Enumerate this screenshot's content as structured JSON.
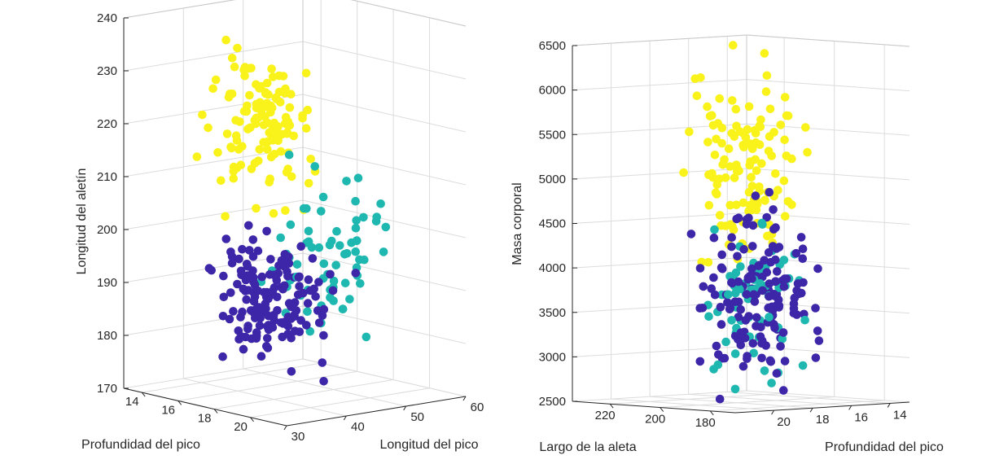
{
  "chart_data": [
    {
      "type": "scatter",
      "title": "",
      "xlabel": "Profundidad del pico",
      "ylabel": "Longitud del pico",
      "zlabel": "Longitud del aletín",
      "x_ticks": [
        "20",
        "18",
        "16",
        "14"
      ],
      "y_ticks": [
        "30",
        "40",
        "50",
        "60"
      ],
      "z_ticks": [
        "170",
        "180",
        "190",
        "200",
        "210",
        "220",
        "230",
        "240"
      ],
      "xlim": [
        13,
        22
      ],
      "ylim": [
        30,
        60
      ],
      "zlim": [
        170,
        240
      ],
      "grid": true,
      "clusters": [
        {
          "color": "#3d26a8",
          "center": [
            18.3,
            38.8,
            190
          ],
          "spread": [
            1.2,
            2.8,
            6
          ],
          "count": 150,
          "seed": 11
        },
        {
          "color": "#1fb8b0",
          "center": [
            17.8,
            48.8,
            196
          ],
          "spread": [
            1.1,
            3.2,
            7
          ],
          "count": 68,
          "seed": 23
        },
        {
          "color": "#f9f31b",
          "center": [
            15.0,
            47.5,
            217
          ],
          "spread": [
            1.0,
            3.0,
            6.5
          ],
          "count": 124,
          "seed": 37
        }
      ]
    },
    {
      "type": "scatter",
      "title": "",
      "xlabel": "Largo de la aleta",
      "ylabel": "Profundidad del pico",
      "zlabel": "Masa corporal",
      "x_ticks": [
        "180",
        "200",
        "220"
      ],
      "y_ticks": [
        "20",
        "18",
        "16",
        "14"
      ],
      "z_ticks": [
        "2500",
        "3000",
        "3500",
        "4000",
        "4500",
        "5000",
        "5500",
        "6000",
        "6500"
      ],
      "xlim": [
        170,
        235
      ],
      "ylim": [
        13,
        22
      ],
      "zlim": [
        2500,
        6500
      ],
      "grid": true,
      "clusters": [
        {
          "color": "#3d26a8",
          "center": [
            190,
            18.3,
            3700
          ],
          "spread": [
            6,
            1.2,
            450
          ],
          "count": 150,
          "seed": 41
        },
        {
          "color": "#1fb8b0",
          "center": [
            196,
            17.8,
            3730
          ],
          "spread": [
            7,
            1.1,
            380
          ],
          "count": 68,
          "seed": 53
        },
        {
          "color": "#f9f31b",
          "center": [
            217,
            15.0,
            5080
          ],
          "spread": [
            6.5,
            1.0,
            500
          ],
          "count": 124,
          "seed": 67
        }
      ]
    }
  ]
}
